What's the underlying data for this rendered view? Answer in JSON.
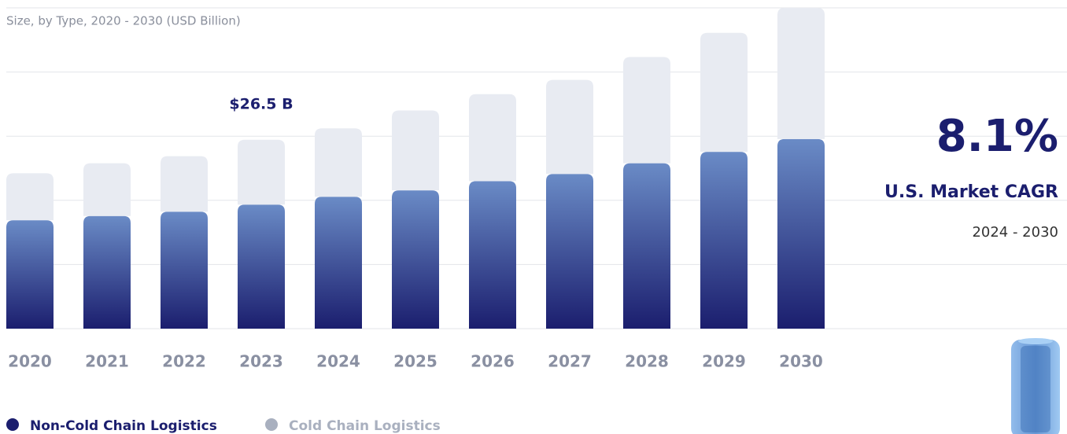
{
  "chart_data": {
    "type": "stacked_bar",
    "subtitle": "Size, by Type, 2020 - 2030 (USD Billion)",
    "categories": [
      "2020",
      "2021",
      "2022",
      "2023",
      "2024",
      "2025",
      "2026",
      "2027",
      "2028",
      "2029",
      "2030"
    ],
    "series": [
      {
        "name": "Non-Cold Chain Logistics",
        "color": "#1b1e6e",
        "values": [
          15.2,
          15.8,
          16.4,
          17.4,
          18.5,
          19.4,
          20.7,
          21.7,
          23.2,
          24.8,
          26.6
        ]
      },
      {
        "name": "Cold Chain Logistics",
        "color": "#e8ebf2",
        "values": [
          6.6,
          7.4,
          7.8,
          9.1,
          9.6,
          11.2,
          12.2,
          13.2,
          14.9,
          16.7,
          18.4
        ]
      }
    ],
    "ylim": [
      0,
      45
    ],
    "yticks": [
      0,
      9,
      18,
      27,
      36,
      45
    ],
    "grid": true,
    "annotation": {
      "category": "2023",
      "text": "$26.5 B"
    },
    "cagr": {
      "value": "8.1%",
      "label": "U.S. Market CAGR",
      "period": "2024 - 2030"
    }
  }
}
